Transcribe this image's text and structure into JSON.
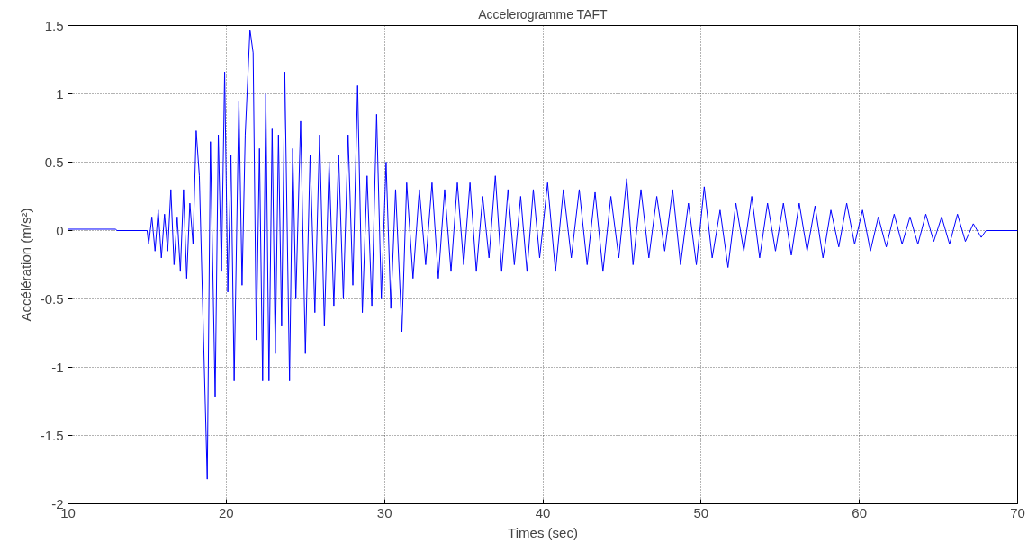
{
  "chart_data": {
    "type": "line",
    "title": "Accelerogramme TAFT",
    "xlabel": "Times (sec)",
    "ylabel": "Accélération (m/s²)",
    "xlim": [
      10,
      70
    ],
    "ylim": [
      -2,
      1.5
    ],
    "xticks": [
      10,
      20,
      30,
      40,
      50,
      60,
      70
    ],
    "yticks": [
      -2,
      -1.5,
      -1,
      -0.5,
      0,
      0.5,
      1,
      1.5
    ],
    "grid": true,
    "series": [
      {
        "color": "#0000ff",
        "x": [
          10,
          13,
          13.1,
          15,
          15.1,
          15.3,
          15.5,
          15.7,
          15.9,
          16.1,
          16.3,
          16.5,
          16.7,
          16.9,
          17.1,
          17.3,
          17.5,
          17.7,
          17.9,
          18.1,
          18.3,
          18.5,
          18.8,
          19.0,
          19.3,
          19.5,
          19.7,
          19.9,
          20.1,
          20.3,
          20.5,
          20.8,
          21.0,
          21.2,
          21.5,
          21.7,
          21.9,
          22.1,
          22.3,
          22.5,
          22.7,
          22.9,
          23.1,
          23.3,
          23.5,
          23.7,
          24.0,
          24.2,
          24.4,
          24.7,
          25.0,
          25.3,
          25.6,
          25.9,
          26.2,
          26.5,
          26.8,
          27.1,
          27.4,
          27.7,
          28.0,
          28.3,
          28.6,
          28.9,
          29.2,
          29.5,
          29.8,
          30.1,
          30.4,
          30.7,
          31.1,
          31.4,
          31.8,
          32.2,
          32.6,
          33.0,
          33.4,
          33.8,
          34.2,
          34.6,
          35.0,
          35.4,
          35.8,
          36.2,
          36.6,
          37.0,
          37.4,
          37.8,
          38.2,
          38.6,
          39.0,
          39.4,
          39.8,
          40.3,
          40.8,
          41.3,
          41.8,
          42.3,
          42.8,
          43.3,
          43.8,
          44.3,
          44.8,
          45.3,
          45.7,
          46.2,
          46.7,
          47.2,
          47.7,
          48.2,
          48.7,
          49.2,
          49.7,
          50.2,
          50.7,
          51.2,
          51.7,
          52.2,
          52.7,
          53.2,
          53.7,
          54.2,
          54.7,
          55.2,
          55.7,
          56.2,
          56.7,
          57.2,
          57.7,
          58.2,
          58.7,
          59.2,
          59.7,
          60.2,
          60.7,
          61.2,
          61.7,
          62.2,
          62.7,
          63.2,
          63.7,
          64.2,
          64.7,
          65.2,
          65.7,
          66.2,
          66.7,
          67.2,
          67.7,
          68,
          70
        ],
        "values": [
          0.01,
          0.01,
          0,
          0,
          -0.1,
          0.1,
          -0.15,
          0.15,
          -0.2,
          0.12,
          -0.15,
          0.3,
          -0.25,
          0.1,
          -0.3,
          0.3,
          -0.35,
          0.2,
          -0.1,
          0.73,
          0.4,
          -0.5,
          -1.82,
          0.65,
          -1.22,
          0.7,
          -0.3,
          1.16,
          -0.45,
          0.55,
          -1.1,
          0.95,
          -0.4,
          0.7,
          1.47,
          1.3,
          -0.8,
          0.6,
          -1.1,
          1.0,
          -1.1,
          0.75,
          -0.9,
          0.7,
          -0.7,
          1.16,
          -1.1,
          0.6,
          -0.5,
          0.8,
          -0.9,
          0.55,
          -0.6,
          0.7,
          -0.7,
          0.5,
          -0.55,
          0.55,
          -0.5,
          0.7,
          -0.4,
          1.06,
          -0.6,
          0.4,
          -0.55,
          0.85,
          -0.5,
          0.5,
          -0.57,
          0.3,
          -0.74,
          0.35,
          -0.35,
          0.3,
          -0.25,
          0.35,
          -0.35,
          0.3,
          -0.3,
          0.35,
          -0.25,
          0.35,
          -0.3,
          0.25,
          -0.2,
          0.4,
          -0.3,
          0.3,
          -0.25,
          0.25,
          -0.3,
          0.3,
          -0.2,
          0.35,
          -0.3,
          0.3,
          -0.2,
          0.3,
          -0.25,
          0.28,
          -0.3,
          0.25,
          -0.2,
          0.38,
          -0.25,
          0.3,
          -0.2,
          0.25,
          -0.15,
          0.3,
          -0.25,
          0.2,
          -0.25,
          0.32,
          -0.2,
          0.15,
          -0.27,
          0.2,
          -0.15,
          0.25,
          -0.2,
          0.2,
          -0.15,
          0.2,
          -0.18,
          0.2,
          -0.15,
          0.18,
          -0.2,
          0.15,
          -0.12,
          0.2,
          -0.1,
          0.15,
          -0.15,
          0.1,
          -0.12,
          0.12,
          -0.1,
          0.1,
          -0.1,
          0.12,
          -0.08,
          0.1,
          -0.1,
          0.12,
          -0.08,
          0.05,
          -0.05,
          0,
          0
        ]
      }
    ]
  }
}
